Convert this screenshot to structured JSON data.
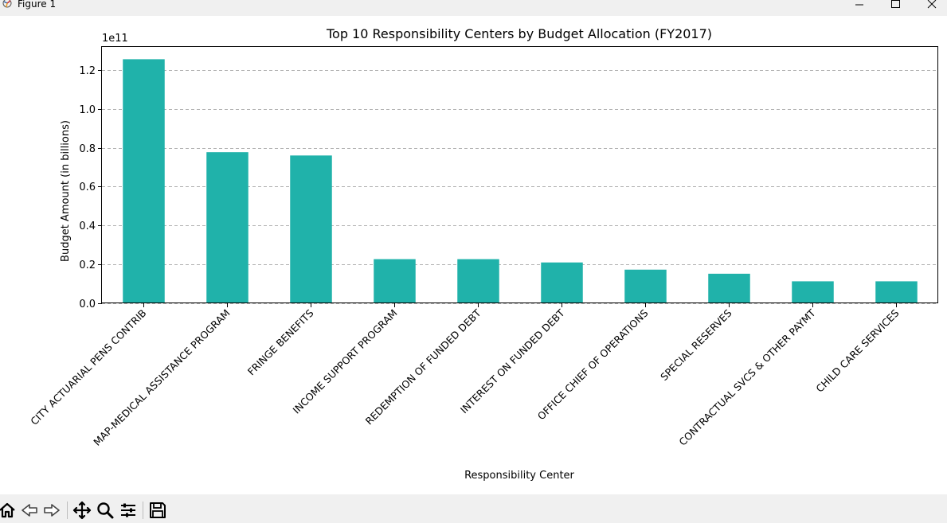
{
  "window": {
    "title": "Figure 1",
    "controls": [
      "minimize-icon",
      "maximize-icon",
      "close-icon"
    ]
  },
  "toolbar": {
    "buttons": [
      "home-icon",
      "back-icon",
      "forward-icon",
      "pan-icon",
      "zoom-icon",
      "configure-subplots-icon",
      "save-icon"
    ]
  },
  "colors": {
    "bar": "#20b2aa",
    "grid": "#b0b0b0",
    "background": "#ffffff",
    "chrome": "#f0f0f0"
  },
  "chart_data": {
    "type": "bar",
    "title": "Top 10 Responsibility Centers by Budget Allocation (FY2017)",
    "xlabel": "Responsibility Center",
    "ylabel": "Budget Amount (in billions)",
    "offset_text": "1e11",
    "categories": [
      "CITY ACTUARIAL PENS CONTRIB",
      "MAP-MEDICAL ASSISTANCE PROGRAM",
      "FRINGE BENEFITS",
      "INCOME SUPPORT PROGRAM",
      "REDEMPTION OF FUNDED DEBT",
      "INTEREST ON FUNDED DEBT",
      "OFFICE CHIEF OF OPERATIONS",
      "SPECIAL RESERVES",
      "CONTRACTUAL SVCS & OTHER PAYMT",
      "CHILD CARE SERVICES"
    ],
    "values": [
      125500000000,
      77700000000,
      76000000000,
      22700000000,
      22700000000,
      21000000000,
      17300000000,
      15200000000,
      11300000000,
      11300000000
    ],
    "ylim": [
      0,
      131800000000
    ],
    "yticks": [
      0,
      20000000000,
      40000000000,
      60000000000,
      80000000000,
      100000000000,
      120000000000
    ],
    "ytick_labels": [
      "0.0",
      "0.2",
      "0.4",
      "0.6",
      "0.8",
      "1.0",
      "1.2"
    ],
    "grid": "y-dashed",
    "legend": "none"
  }
}
